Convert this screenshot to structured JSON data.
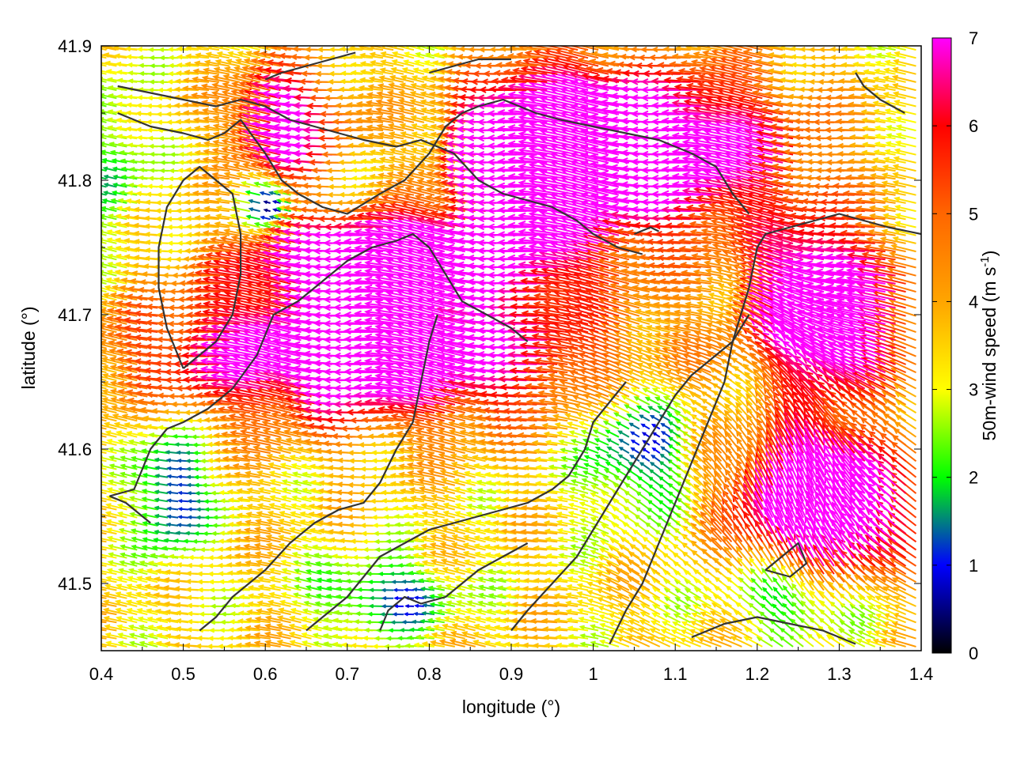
{
  "chart_data": {
    "type": "vector-field",
    "xlabel": "longitude (°)",
    "ylabel": "latitude (°)",
    "xlim": [
      0.4,
      1.4
    ],
    "ylim": [
      41.45,
      41.9
    ],
    "x_ticks": [
      0.4,
      0.5,
      0.6,
      0.7,
      0.8,
      0.9,
      1.0,
      1.1,
      1.2,
      1.3,
      1.4
    ],
    "x_tick_labels": [
      "0.4",
      "0.5",
      "0.6",
      "0.7",
      "0.8",
      "0.9",
      "1",
      "1.1",
      "1.2",
      "1.3",
      "1.4"
    ],
    "y_ticks": [
      41.5,
      41.6,
      41.7,
      41.8,
      41.9
    ],
    "y_tick_labels": [
      "41.5",
      "41.6",
      "41.7",
      "41.8",
      "41.9"
    ],
    "colorbar": {
      "label_main": "50m-wind speed (m s",
      "label_sup": "-1",
      "label_end": ")",
      "range": [
        0,
        7
      ],
      "ticks": [
        0,
        1,
        2,
        3,
        4,
        5,
        6,
        7
      ],
      "tick_labels": [
        "0",
        "1",
        "2",
        "3",
        "4",
        "5",
        "6",
        "7"
      ],
      "colormap": [
        {
          "v": 0,
          "c": "#000000"
        },
        {
          "v": 1,
          "c": "#0000ff"
        },
        {
          "v": 1.5,
          "c": "#008080"
        },
        {
          "v": 2,
          "c": "#00ff00"
        },
        {
          "v": 3,
          "c": "#ffff00"
        },
        {
          "v": 4,
          "c": "#ffa500"
        },
        {
          "v": 5,
          "c": "#ff6600"
        },
        {
          "v": 6,
          "c": "#ff0000"
        },
        {
          "v": 7,
          "c": "#ff00ff"
        }
      ]
    },
    "grid_spacing": [
      0.0125,
      0.006
    ],
    "contour_color": "#333333",
    "contours": [
      [
        [
          0.41,
          41.565
        ],
        [
          0.44,
          41.57
        ],
        [
          0.46,
          41.6
        ],
        [
          0.48,
          41.615
        ],
        [
          0.5,
          41.62
        ],
        [
          0.53,
          41.63
        ],
        [
          0.56,
          41.645
        ],
        [
          0.59,
          41.67
        ],
        [
          0.61,
          41.7
        ],
        [
          0.64,
          41.71
        ],
        [
          0.66,
          41.72
        ],
        [
          0.68,
          41.73
        ],
        [
          0.7,
          41.74
        ],
        [
          0.73,
          41.75
        ],
        [
          0.76,
          41.755
        ],
        [
          0.78,
          41.76
        ],
        [
          0.8,
          41.75
        ],
        [
          0.82,
          41.73
        ],
        [
          0.84,
          41.71
        ],
        [
          0.87,
          41.7
        ],
        [
          0.9,
          41.69
        ],
        [
          0.92,
          41.68
        ]
      ],
      [
        [
          0.41,
          41.565
        ],
        [
          0.43,
          41.56
        ],
        [
          0.46,
          41.545
        ]
      ],
      [
        [
          0.52,
          41.465
        ],
        [
          0.54,
          41.475
        ],
        [
          0.56,
          41.49
        ],
        [
          0.58,
          41.5
        ],
        [
          0.6,
          41.51
        ],
        [
          0.63,
          41.53
        ],
        [
          0.66,
          41.545
        ],
        [
          0.69,
          41.555
        ],
        [
          0.72,
          41.56
        ],
        [
          0.74,
          41.575
        ],
        [
          0.76,
          41.6
        ],
        [
          0.78,
          41.62
        ],
        [
          0.79,
          41.65
        ],
        [
          0.8,
          41.68
        ],
        [
          0.81,
          41.7
        ]
      ],
      [
        [
          0.65,
          41.465
        ],
        [
          0.68,
          41.48
        ],
        [
          0.7,
          41.49
        ],
        [
          0.72,
          41.505
        ],
        [
          0.74,
          41.52
        ],
        [
          0.77,
          41.53
        ],
        [
          0.8,
          41.54
        ],
        [
          0.83,
          41.545
        ],
        [
          0.86,
          41.55
        ],
        [
          0.89,
          41.555
        ],
        [
          0.92,
          41.56
        ],
        [
          0.95,
          41.57
        ],
        [
          0.97,
          41.58
        ],
        [
          0.99,
          41.6
        ],
        [
          1.0,
          41.62
        ],
        [
          1.02,
          41.635
        ],
        [
          1.04,
          41.65
        ]
      ],
      [
        [
          0.74,
          41.465
        ],
        [
          0.75,
          41.48
        ],
        [
          0.77,
          41.49
        ],
        [
          0.79,
          41.485
        ],
        [
          0.82,
          41.49
        ],
        [
          0.84,
          41.5
        ],
        [
          0.86,
          41.51
        ],
        [
          0.89,
          41.52
        ],
        [
          0.92,
          41.53
        ]
      ],
      [
        [
          0.9,
          41.465
        ],
        [
          0.92,
          41.48
        ],
        [
          0.95,
          41.5
        ],
        [
          0.98,
          41.52
        ],
        [
          1.0,
          41.54
        ],
        [
          1.02,
          41.56
        ],
        [
          1.04,
          41.58
        ],
        [
          1.06,
          41.6
        ],
        [
          1.08,
          41.62
        ],
        [
          1.1,
          41.64
        ],
        [
          1.12,
          41.655
        ],
        [
          1.14,
          41.665
        ],
        [
          1.17,
          41.68
        ],
        [
          1.19,
          41.7
        ]
      ],
      [
        [
          1.02,
          41.455
        ],
        [
          1.04,
          41.48
        ],
        [
          1.06,
          41.5
        ],
        [
          1.08,
          41.53
        ],
        [
          1.1,
          41.56
        ],
        [
          1.12,
          41.59
        ],
        [
          1.14,
          41.62
        ],
        [
          1.16,
          41.65
        ],
        [
          1.17,
          41.68
        ],
        [
          1.18,
          41.7
        ],
        [
          1.19,
          41.72
        ]
      ],
      [
        [
          1.19,
          41.72
        ],
        [
          1.2,
          41.75
        ],
        [
          1.21,
          41.76
        ],
        [
          1.24,
          41.765
        ],
        [
          1.27,
          41.77
        ],
        [
          1.3,
          41.775
        ],
        [
          1.33,
          41.77
        ],
        [
          1.36,
          41.765
        ],
        [
          1.4,
          41.76
        ]
      ],
      [
        [
          1.12,
          41.46
        ],
        [
          1.16,
          41.47
        ],
        [
          1.2,
          41.475
        ],
        [
          1.24,
          41.47
        ],
        [
          1.28,
          41.465
        ],
        [
          1.32,
          41.455
        ]
      ],
      [
        [
          1.21,
          41.51
        ],
        [
          1.23,
          41.52
        ],
        [
          1.25,
          41.53
        ],
        [
          1.26,
          41.515
        ],
        [
          1.24,
          41.505
        ],
        [
          1.21,
          41.51
        ]
      ],
      [
        [
          0.42,
          41.85
        ],
        [
          0.46,
          41.84
        ],
        [
          0.5,
          41.835
        ],
        [
          0.53,
          41.83
        ],
        [
          0.55,
          41.835
        ],
        [
          0.57,
          41.845
        ],
        [
          0.6,
          41.82
        ],
        [
          0.62,
          41.8
        ],
        [
          0.64,
          41.79
        ],
        [
          0.67,
          41.78
        ],
        [
          0.7,
          41.775
        ],
        [
          0.74,
          41.79
        ],
        [
          0.77,
          41.8
        ],
        [
          0.8,
          41.82
        ],
        [
          0.82,
          41.84
        ],
        [
          0.84,
          41.85
        ],
        [
          0.86,
          41.855
        ],
        [
          0.89,
          41.86
        ],
        [
          0.93,
          41.85
        ],
        [
          0.96,
          41.845
        ],
        [
          1.0,
          41.84
        ],
        [
          1.04,
          41.835
        ],
        [
          1.08,
          41.83
        ],
        [
          1.12,
          41.82
        ],
        [
          1.15,
          41.81
        ],
        [
          1.17,
          41.79
        ],
        [
          1.19,
          41.775
        ]
      ],
      [
        [
          0.42,
          41.87
        ],
        [
          0.46,
          41.865
        ],
        [
          0.5,
          41.86
        ],
        [
          0.54,
          41.855
        ],
        [
          0.57,
          41.86
        ],
        [
          0.6,
          41.855
        ],
        [
          0.63,
          41.845
        ],
        [
          0.66,
          41.84
        ],
        [
          0.69,
          41.835
        ],
        [
          0.72,
          41.83
        ],
        [
          0.76,
          41.825
        ],
        [
          0.79,
          41.83
        ],
        [
          0.83,
          41.82
        ],
        [
          0.86,
          41.8
        ],
        [
          0.89,
          41.79
        ],
        [
          0.92,
          41.785
        ],
        [
          0.95,
          41.78
        ],
        [
          0.98,
          41.77
        ],
        [
          1.0,
          41.76
        ],
        [
          1.03,
          41.75
        ],
        [
          1.06,
          41.745
        ]
      ],
      [
        [
          0.5,
          41.66
        ],
        [
          0.52,
          41.67
        ],
        [
          0.54,
          41.68
        ],
        [
          0.56,
          41.7
        ],
        [
          0.57,
          41.73
        ],
        [
          0.57,
          41.76
        ],
        [
          0.56,
          41.79
        ],
        [
          0.54,
          41.8
        ],
        [
          0.52,
          41.81
        ],
        [
          0.5,
          41.8
        ],
        [
          0.48,
          41.78
        ],
        [
          0.47,
          41.75
        ],
        [
          0.47,
          41.72
        ],
        [
          0.48,
          41.69
        ],
        [
          0.5,
          41.66
        ]
      ],
      [
        [
          0.6,
          41.875
        ],
        [
          0.62,
          41.88
        ],
        [
          0.65,
          41.885
        ],
        [
          0.68,
          41.89
        ],
        [
          0.71,
          41.895
        ]
      ],
      [
        [
          0.8,
          41.88
        ],
        [
          0.83,
          41.885
        ],
        [
          0.86,
          41.89
        ],
        [
          0.9,
          41.89
        ]
      ],
      [
        [
          1.05,
          41.76
        ],
        [
          1.07,
          41.765
        ],
        [
          1.08,
          41.762
        ]
      ],
      [
        [
          1.32,
          41.88
        ],
        [
          1.33,
          41.87
        ],
        [
          1.35,
          41.86
        ],
        [
          1.38,
          41.85
        ]
      ]
    ]
  }
}
